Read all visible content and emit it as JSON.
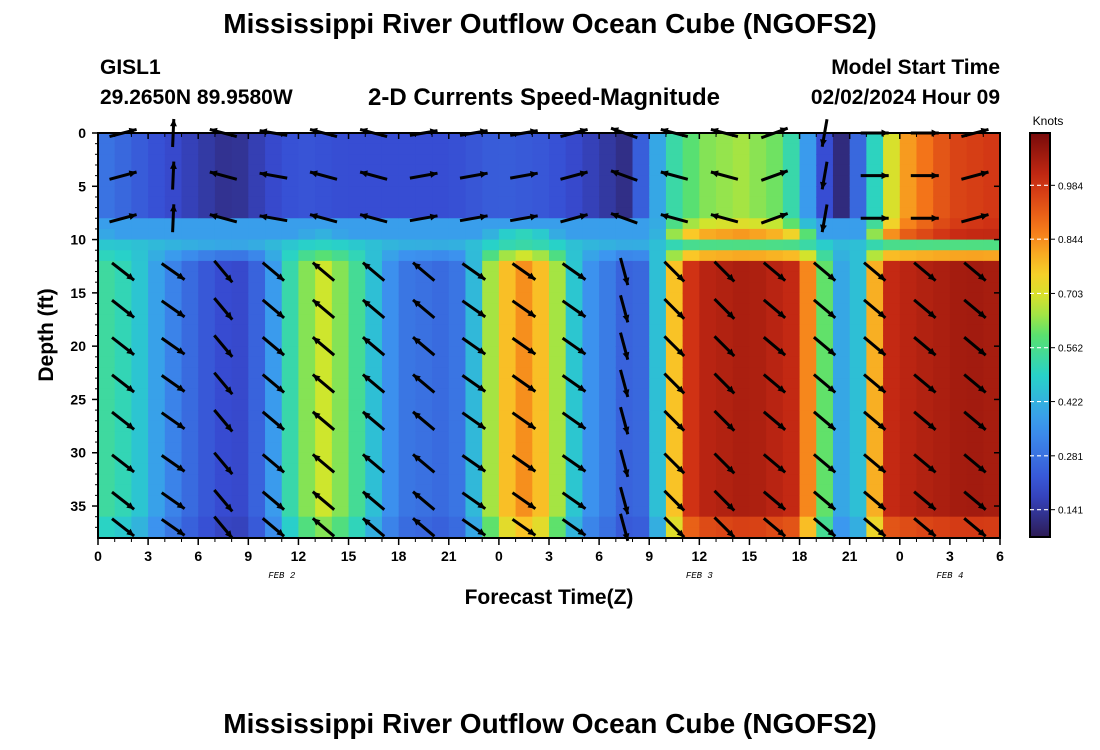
{
  "header": {
    "title": "Mississippi River Outflow Ocean Cube (NGOFS2)",
    "station_id": "GISL1",
    "station_coords": "29.2650N  89.9580W",
    "plot_title": "2-D Currents Speed-Magnitude",
    "model_start_label": "Model Start Time",
    "model_start_time": "02/02/2024 Hour 09"
  },
  "footer": {
    "title": "Mississippi River Outflow Ocean Cube (NGOFS2)"
  },
  "chart_data": {
    "type": "heatmap",
    "title": "2-D Currents Speed-Magnitude",
    "xlabel": "Forecast Time(Z)",
    "ylabel": "Depth (ft)",
    "x_range_hours": [
      0,
      54
    ],
    "x_tick_labels": [
      "0",
      "3",
      "6",
      "9",
      "12",
      "15",
      "18",
      "21",
      "0",
      "3",
      "6",
      "9",
      "12",
      "15",
      "18",
      "21",
      "0",
      "3",
      "6"
    ],
    "x_date_labels": [
      {
        "label": "FEB 2",
        "hour": 11
      },
      {
        "label": "FEB 3",
        "hour": 36
      },
      {
        "label": "FEB 4",
        "hour": 51
      }
    ],
    "y_range": [
      0,
      38
    ],
    "y_ticks": [
      0,
      5,
      10,
      15,
      20,
      25,
      30,
      35
    ],
    "y_inverted": true,
    "colorbar": {
      "unit": "Knots",
      "min": 0.07,
      "max": 1.12,
      "tick_labels": [
        "0.984",
        "0.844",
        "0.703",
        "0.562",
        "0.422",
        "0.281",
        "0.141"
      ],
      "colormap": "jet"
    },
    "bottom_layer": {
      "depth_range_ft": [
        10,
        38
      ],
      "speed_knots_by_hour": [
        [
          0,
          0.55
        ],
        [
          2,
          0.5
        ],
        [
          4,
          0.35
        ],
        [
          6,
          0.24
        ],
        [
          8,
          0.18
        ],
        [
          9,
          0.2
        ],
        [
          10,
          0.3
        ],
        [
          11,
          0.45
        ],
        [
          12,
          0.6
        ],
        [
          13.5,
          0.68
        ],
        [
          15,
          0.6
        ],
        [
          16.5,
          0.45
        ],
        [
          18,
          0.3
        ],
        [
          21,
          0.26
        ],
        [
          22,
          0.32
        ],
        [
          23,
          0.55
        ],
        [
          24,
          0.75
        ],
        [
          25.5,
          0.84
        ],
        [
          27,
          0.75
        ],
        [
          28,
          0.55
        ],
        [
          29,
          0.38
        ],
        [
          31,
          0.28
        ],
        [
          32,
          0.22
        ],
        [
          33,
          0.3
        ],
        [
          34,
          0.6
        ],
        [
          35,
          0.95
        ],
        [
          36,
          1.02
        ],
        [
          39,
          1.05
        ],
        [
          42,
          1.0
        ],
        [
          43,
          0.7
        ],
        [
          45,
          0.3
        ],
        [
          46,
          0.6
        ],
        [
          47,
          1.0
        ],
        [
          49,
          1.03
        ],
        [
          52,
          1.06
        ],
        [
          54,
          1.05
        ]
      ]
    },
    "top_layer": {
      "depth_range_ft": [
        0,
        8
      ],
      "speed_knots_by_hour": [
        [
          0,
          0.3
        ],
        [
          3,
          0.22
        ],
        [
          6,
          0.16
        ],
        [
          8,
          0.12
        ],
        [
          10,
          0.18
        ],
        [
          12,
          0.22
        ],
        [
          15,
          0.2
        ],
        [
          18,
          0.2
        ],
        [
          21,
          0.2
        ],
        [
          24,
          0.24
        ],
        [
          27,
          0.22
        ],
        [
          30,
          0.16
        ],
        [
          31.5,
          0.12
        ],
        [
          33,
          0.3
        ],
        [
          34,
          0.5
        ],
        [
          36,
          0.62
        ],
        [
          38.5,
          0.65
        ],
        [
          41,
          0.6
        ],
        [
          43,
          0.3
        ],
        [
          44,
          0.1
        ],
        [
          45,
          0.12
        ],
        [
          46,
          0.4
        ],
        [
          48,
          0.8
        ],
        [
          51,
          0.95
        ],
        [
          54,
          0.98
        ]
      ]
    },
    "arrow_rows_depth_ft": [
      0,
      4,
      8,
      13,
      16.5,
      20,
      23.5,
      27,
      31,
      34.5,
      37
    ],
    "arrow_cols_hours": [
      1.5,
      4.5,
      7.5,
      10.5,
      13.5,
      16.5,
      19.5,
      22.5,
      25.5,
      28.5,
      31.5,
      34.5,
      37.5,
      40.5,
      43.5,
      46.5,
      49.5,
      52.5
    ],
    "arrow_bottom_direction_deg_by_hour": [
      [
        0,
        -40
      ],
      [
        4,
        -35
      ],
      [
        6,
        -35
      ],
      [
        7.5,
        -50
      ],
      [
        9,
        -60
      ],
      [
        10.5,
        -40
      ],
      [
        12,
        140
      ],
      [
        15,
        140
      ],
      [
        16.5,
        140
      ],
      [
        19.5,
        140
      ],
      [
        22.5,
        -35
      ],
      [
        25.5,
        -35
      ],
      [
        28.5,
        -35
      ],
      [
        30,
        -60
      ],
      [
        31.5,
        -75
      ],
      [
        34.5,
        -45
      ],
      [
        37.5,
        -45
      ],
      [
        40.5,
        -40
      ],
      [
        43.5,
        -40
      ],
      [
        46.5,
        -40
      ],
      [
        49.5,
        -40
      ],
      [
        52.5,
        -40
      ]
    ],
    "arrow_top_direction_deg_by_hour": [
      [
        0,
        15
      ],
      [
        3,
        15
      ],
      [
        6,
        160
      ],
      [
        7.5,
        165
      ],
      [
        10.5,
        170
      ],
      [
        13.5,
        165
      ],
      [
        16.5,
        165
      ],
      [
        19.5,
        10
      ],
      [
        22.5,
        10
      ],
      [
        25.5,
        10
      ],
      [
        28.5,
        15
      ],
      [
        31.5,
        160
      ],
      [
        34.5,
        165
      ],
      [
        37.5,
        165
      ],
      [
        40.5,
        20
      ],
      [
        43.5,
        -100
      ],
      [
        46.5,
        0
      ],
      [
        49.5,
        0
      ],
      [
        52.5,
        15
      ]
    ]
  }
}
